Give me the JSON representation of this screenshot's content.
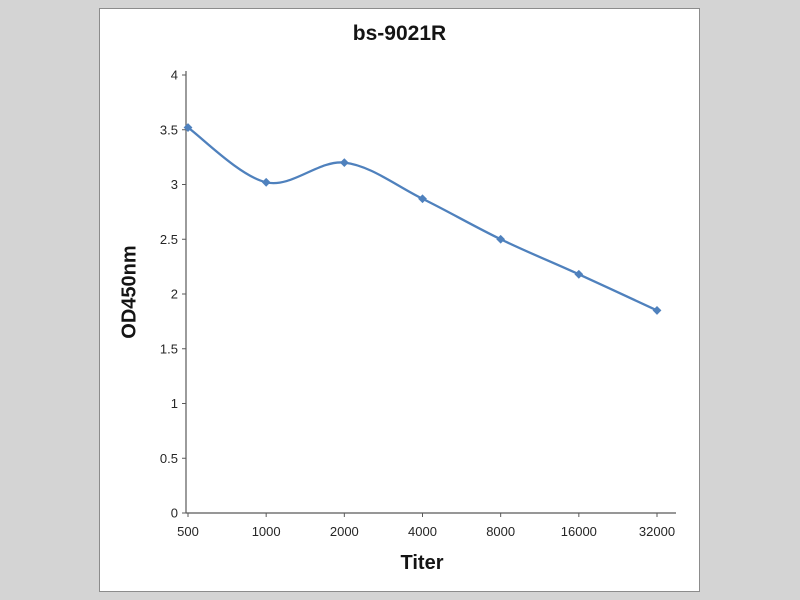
{
  "figure": {
    "panel_background": "#ffffff",
    "page_background": "#d4d4d4"
  },
  "chart_data": {
    "type": "line",
    "title": "bs-9021R",
    "xlabel": "Titer",
    "ylabel": "OD450nm",
    "categories": [
      "500",
      "1000",
      "2000",
      "4000",
      "8000",
      "16000",
      "32000"
    ],
    "series": [
      {
        "name": "bs-9021R",
        "values": [
          3.52,
          3.02,
          3.2,
          2.87,
          2.5,
          2.18,
          1.85
        ]
      }
    ],
    "ylim": [
      0,
      4
    ],
    "ytick_step": 0.5,
    "grid": false,
    "legend": false,
    "smooth": true,
    "marker": "diamond",
    "line_color": "#4f81bd",
    "axis_color": "#595959",
    "tick_label_color": "#262626"
  }
}
